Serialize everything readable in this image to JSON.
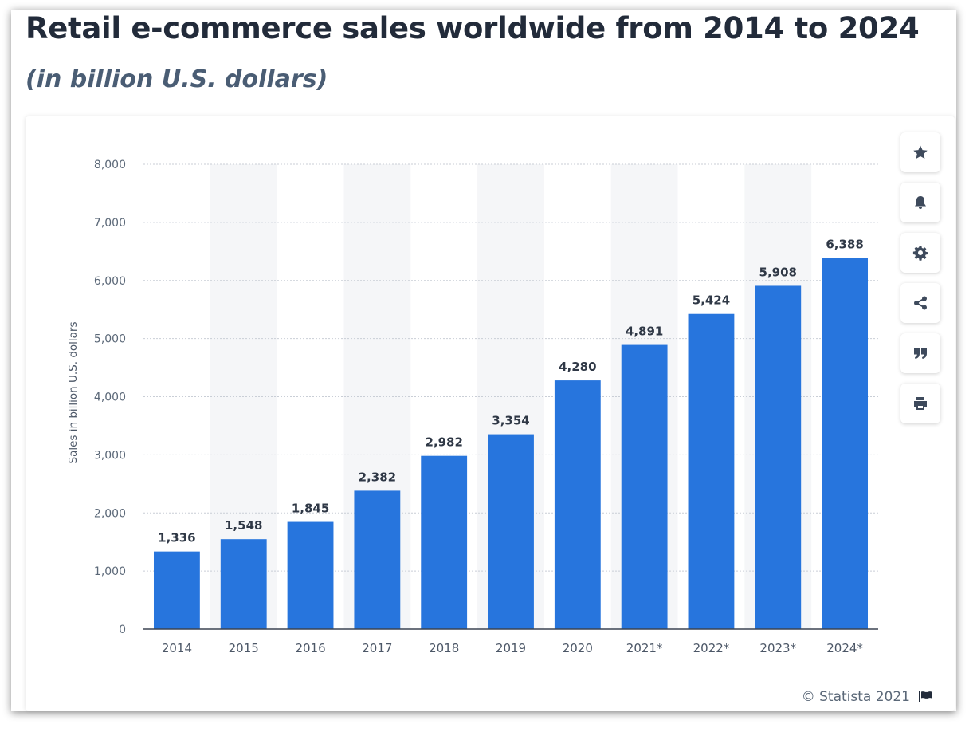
{
  "header": {
    "title": "Retail e-commerce sales worldwide from 2014 to 2024",
    "subtitle": "(in billion U.S. dollars)"
  },
  "toolbar": {
    "buttons": [
      {
        "name": "favorite",
        "icon": "star-icon"
      },
      {
        "name": "notify",
        "icon": "bell-icon"
      },
      {
        "name": "settings",
        "icon": "gear-icon"
      },
      {
        "name": "share",
        "icon": "share-icon"
      },
      {
        "name": "cite",
        "icon": "quote-icon"
      },
      {
        "name": "print",
        "icon": "print-icon"
      }
    ]
  },
  "footer": {
    "credit": "© Statista 2021",
    "flag_icon": "flag-icon"
  },
  "colors": {
    "bar": "#2775dd",
    "title": "#222b3a",
    "subtitle": "#4a5d74",
    "band": "#f5f6f8",
    "grid": "#c9ced6",
    "axis": "#3b4452"
  },
  "chart_data": {
    "type": "bar",
    "categories": [
      "2014",
      "2015",
      "2016",
      "2017",
      "2018",
      "2019",
      "2020",
      "2021*",
      "2022*",
      "2023*",
      "2024*"
    ],
    "values": [
      1336,
      1548,
      1845,
      2382,
      2982,
      3354,
      4280,
      4891,
      5424,
      5908,
      6388
    ],
    "value_labels": [
      "1,336",
      "1,548",
      "1,845",
      "2,382",
      "2,982",
      "3,354",
      "4,280",
      "4,891",
      "5,424",
      "5,908",
      "6,388"
    ],
    "ylabel": "Sales in billion U.S. dollars",
    "xlabel": "",
    "ylim": [
      0,
      8000
    ],
    "yticks": [
      0,
      1000,
      2000,
      3000,
      4000,
      5000,
      6000,
      7000,
      8000
    ],
    "ytick_labels": [
      "0",
      "1,000",
      "2,000",
      "3,000",
      "4,000",
      "5,000",
      "6,000",
      "7,000",
      "8,000"
    ],
    "grid": true,
    "legend": "none"
  }
}
